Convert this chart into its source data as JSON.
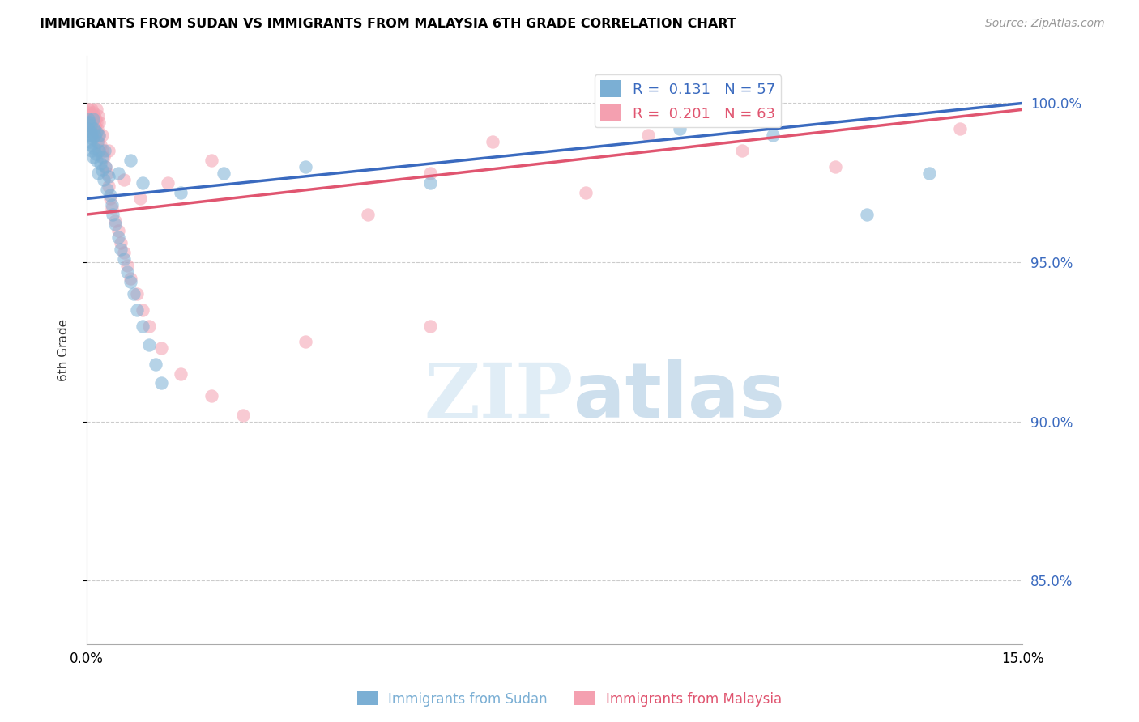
{
  "title": "IMMIGRANTS FROM SUDAN VS IMMIGRANTS FROM MALAYSIA 6TH GRADE CORRELATION CHART",
  "source": "Source: ZipAtlas.com",
  "ylabel": "6th Grade",
  "xlim": [
    0.0,
    15.0
  ],
  "ylim": [
    83.0,
    101.5
  ],
  "yticks": [
    85.0,
    90.0,
    95.0,
    100.0
  ],
  "ytick_labels": [
    "85.0%",
    "90.0%",
    "95.0%",
    "100.0%"
  ],
  "legend_r1": "R =  0.131",
  "legend_n1": "N = 57",
  "legend_r2": "R =  0.201",
  "legend_n2": "N = 63",
  "sudan_color": "#7bafd4",
  "malaysia_color": "#f4a0b0",
  "sudan_line_color": "#3a6abf",
  "malaysia_line_color": "#e05570",
  "watermark_zip": "ZIP",
  "watermark_atlas": "atlas",
  "sudan_scatter": [
    [
      0.02,
      99.5
    ],
    [
      0.03,
      99.2
    ],
    [
      0.04,
      99.4
    ],
    [
      0.05,
      98.8
    ],
    [
      0.05,
      99.0
    ],
    [
      0.06,
      99.1
    ],
    [
      0.07,
      98.7
    ],
    [
      0.07,
      99.3
    ],
    [
      0.08,
      98.5
    ],
    [
      0.08,
      99.0
    ],
    [
      0.09,
      98.9
    ],
    [
      0.1,
      99.5
    ],
    [
      0.1,
      98.3
    ],
    [
      0.11,
      99.2
    ],
    [
      0.12,
      98.6
    ],
    [
      0.13,
      99.0
    ],
    [
      0.14,
      98.4
    ],
    [
      0.15,
      99.1
    ],
    [
      0.16,
      98.2
    ],
    [
      0.17,
      98.8
    ],
    [
      0.18,
      97.8
    ],
    [
      0.19,
      98.5
    ],
    [
      0.2,
      99.0
    ],
    [
      0.22,
      98.1
    ],
    [
      0.24,
      97.9
    ],
    [
      0.25,
      98.3
    ],
    [
      0.27,
      97.6
    ],
    [
      0.3,
      98.0
    ],
    [
      0.33,
      97.3
    ],
    [
      0.35,
      97.7
    ],
    [
      0.38,
      97.1
    ],
    [
      0.4,
      96.8
    ],
    [
      0.42,
      96.5
    ],
    [
      0.45,
      96.2
    ],
    [
      0.5,
      95.8
    ],
    [
      0.55,
      95.4
    ],
    [
      0.6,
      95.1
    ],
    [
      0.65,
      94.7
    ],
    [
      0.7,
      94.4
    ],
    [
      0.75,
      94.0
    ],
    [
      0.8,
      93.5
    ],
    [
      0.9,
      93.0
    ],
    [
      1.0,
      92.4
    ],
    [
      1.1,
      91.8
    ],
    [
      1.2,
      91.2
    ],
    [
      0.28,
      98.5
    ],
    [
      0.5,
      97.8
    ],
    [
      0.7,
      98.2
    ],
    [
      0.9,
      97.5
    ],
    [
      1.5,
      97.2
    ],
    [
      2.2,
      97.8
    ],
    [
      3.5,
      98.0
    ],
    [
      5.5,
      97.5
    ],
    [
      9.5,
      99.2
    ],
    [
      11.0,
      99.0
    ],
    [
      12.5,
      96.5
    ],
    [
      13.5,
      97.8
    ]
  ],
  "malaysia_scatter": [
    [
      0.02,
      99.8
    ],
    [
      0.03,
      99.6
    ],
    [
      0.04,
      99.7
    ],
    [
      0.05,
      99.5
    ],
    [
      0.05,
      99.3
    ],
    [
      0.06,
      99.4
    ],
    [
      0.07,
      99.6
    ],
    [
      0.07,
      99.1
    ],
    [
      0.08,
      99.3
    ],
    [
      0.08,
      99.8
    ],
    [
      0.09,
      99.5
    ],
    [
      0.1,
      99.2
    ],
    [
      0.1,
      99.7
    ],
    [
      0.11,
      99.4
    ],
    [
      0.12,
      99.6
    ],
    [
      0.12,
      99.0
    ],
    [
      0.13,
      99.3
    ],
    [
      0.14,
      99.5
    ],
    [
      0.15,
      99.1
    ],
    [
      0.15,
      99.8
    ],
    [
      0.16,
      99.4
    ],
    [
      0.17,
      99.2
    ],
    [
      0.18,
      99.6
    ],
    [
      0.18,
      98.8
    ],
    [
      0.19,
      99.0
    ],
    [
      0.2,
      99.4
    ],
    [
      0.22,
      98.7
    ],
    [
      0.24,
      98.5
    ],
    [
      0.25,
      99.0
    ],
    [
      0.27,
      98.3
    ],
    [
      0.3,
      98.0
    ],
    [
      0.33,
      97.8
    ],
    [
      0.35,
      97.4
    ],
    [
      0.38,
      97.0
    ],
    [
      0.4,
      96.7
    ],
    [
      0.45,
      96.3
    ],
    [
      0.5,
      96.0
    ],
    [
      0.55,
      95.6
    ],
    [
      0.6,
      95.3
    ],
    [
      0.65,
      94.9
    ],
    [
      0.7,
      94.5
    ],
    [
      0.8,
      94.0
    ],
    [
      0.9,
      93.5
    ],
    [
      1.0,
      93.0
    ],
    [
      1.2,
      92.3
    ],
    [
      1.5,
      91.5
    ],
    [
      2.0,
      90.8
    ],
    [
      2.5,
      90.2
    ],
    [
      0.35,
      98.5
    ],
    [
      0.6,
      97.6
    ],
    [
      0.85,
      97.0
    ],
    [
      1.3,
      97.5
    ],
    [
      2.0,
      98.2
    ],
    [
      3.5,
      92.5
    ],
    [
      4.5,
      96.5
    ],
    [
      5.5,
      97.8
    ],
    [
      5.5,
      93.0
    ],
    [
      6.5,
      98.8
    ],
    [
      8.0,
      97.2
    ],
    [
      9.0,
      99.0
    ],
    [
      10.5,
      98.5
    ],
    [
      12.0,
      98.0
    ],
    [
      14.0,
      99.2
    ]
  ],
  "sudan_trendline": [
    [
      0.0,
      97.0
    ],
    [
      15.0,
      100.0
    ]
  ],
  "malaysia_trendline": [
    [
      0.0,
      96.5
    ],
    [
      15.0,
      99.8
    ]
  ]
}
